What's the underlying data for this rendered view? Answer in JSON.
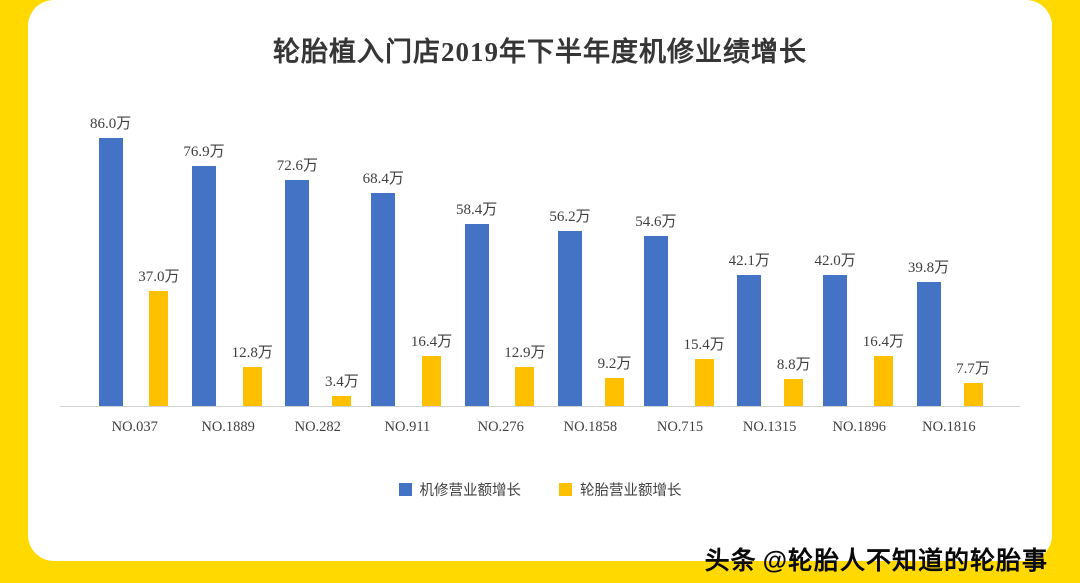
{
  "colors": {
    "frame": "#ffd900",
    "card": "#ffffff",
    "blue_series": "#4472c4",
    "yellow_series": "#ffc000",
    "axis": "#d2d2d2",
    "text": "#3f3f3f"
  },
  "chart_data": {
    "type": "bar",
    "title": "轮胎植入门店2019年下半年度机修业绩增长",
    "categories": [
      "NO.037",
      "NO.1889",
      "NO.282",
      "NO.911",
      "NO.276",
      "NO.1858",
      "NO.715",
      "NO.1315",
      "NO.1896",
      "NO.1816"
    ],
    "series": [
      {
        "name": "机修营业额增长",
        "color": "#4472c4",
        "values": [
          86.0,
          76.9,
          72.6,
          68.4,
          58.4,
          56.2,
          54.6,
          42.1,
          42.0,
          39.8
        ],
        "labels": [
          "86.0万",
          "76.9万",
          "72.6万",
          "68.4万",
          "58.4万",
          "56.2万",
          "54.6万",
          "42.1万",
          "42.0万",
          "39.8万"
        ]
      },
      {
        "name": "轮胎营业额增长",
        "color": "#ffc000",
        "values": [
          37.0,
          12.8,
          3.4,
          16.4,
          12.9,
          9.2,
          15.4,
          8.8,
          16.4,
          7.7
        ],
        "labels": [
          "37.0万",
          "12.8万",
          "3.4万",
          "16.4万",
          "12.9万",
          "9.2万",
          "15.4万",
          "8.8万",
          "16.4万",
          "7.7万"
        ]
      }
    ],
    "xlabel": "",
    "ylabel": "",
    "ylim": [
      0,
      90
    ],
    "grid": false,
    "legend_position": "bottom"
  },
  "watermark": {
    "brand": "头条",
    "handle": "@轮胎人不知道的轮胎事"
  }
}
